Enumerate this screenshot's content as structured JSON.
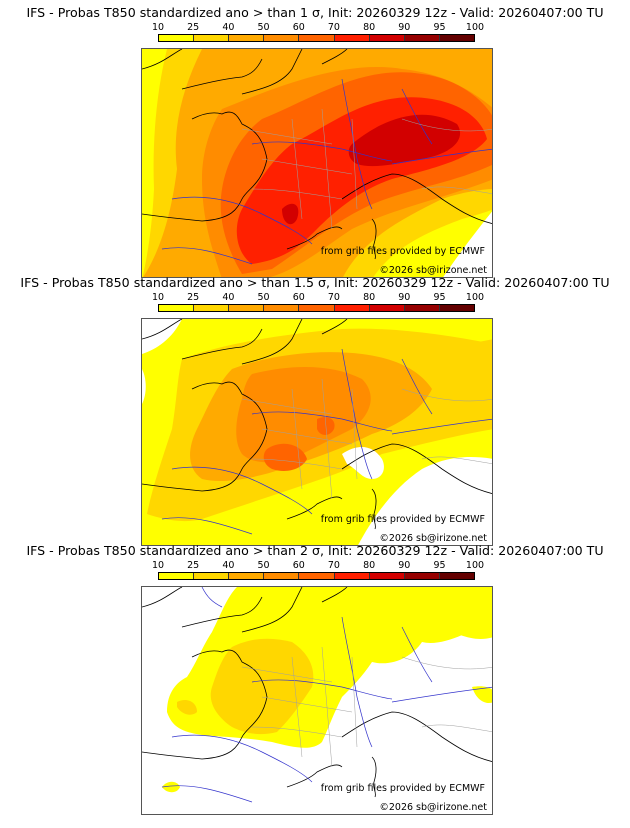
{
  "panels": [
    {
      "title": "IFS - Probas T850  standardized ano > than 1 σ, Init: 20260329 12z - Valid: 20260407:00 TU",
      "threshold": "1 σ",
      "source_credit": "from grib files provided by ECMWF",
      "copyright": "©2026 sb@irizone.net"
    },
    {
      "title": "IFS - Probas T850  standardized ano > than 1.5 σ, Init: 20260329 12z - Valid: 20260407:00 TU",
      "threshold": "1.5 σ",
      "source_credit": "from grib files provided by ECMWF",
      "copyright": "©2026 sb@irizone.net"
    },
    {
      "title": "IFS - Probas T850  standardized ano > than 2 σ, Init: 20260329 12z - Valid: 20260407:00 TU",
      "threshold": "2 σ",
      "source_credit": "from grib files provided by ECMWF",
      "copyright": "©2026 sb@irizone.net"
    }
  ],
  "colorbar": {
    "ticks": [
      "10",
      "25",
      "40",
      "50",
      "60",
      "70",
      "80",
      "90",
      "95",
      "100"
    ],
    "colors": [
      "#ffff00",
      "#ffd700",
      "#ffaa00",
      "#ff8c00",
      "#ff6400",
      "#ff2000",
      "#d20000",
      "#960000",
      "#640000"
    ]
  },
  "map_colors": {
    "ocean_none": "#ffffff",
    "coastline": "#000000",
    "rivers": "#3333cc",
    "borders": "#a0a0a0"
  }
}
